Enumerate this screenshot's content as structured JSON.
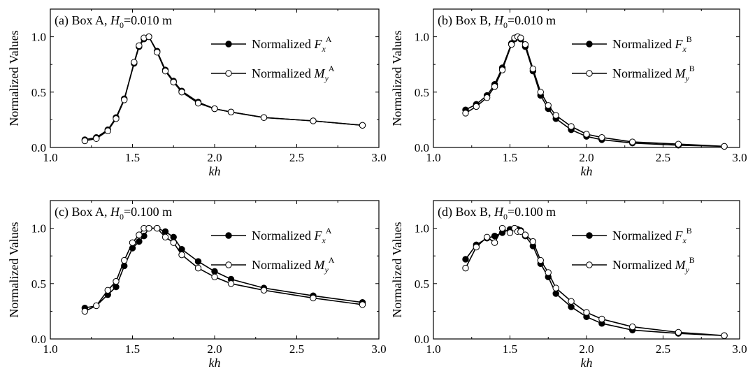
{
  "chart_data": [
    {
      "type": "line",
      "panel_label": "(a) Box A, ",
      "panel_var": "H",
      "panel_sub": "0",
      "panel_value": "=0.010 m",
      "xlabel": "kh",
      "ylabel": "Normalized Values",
      "xlim": [
        1.0,
        3.0
      ],
      "ylim": [
        0.0,
        1.25
      ],
      "xticks": [
        "1.0",
        "1.5",
        "2.0",
        "2.5",
        "3.0"
      ],
      "yticks": [
        "0.0",
        "0.5",
        "1.0"
      ],
      "legend_position": "top-right",
      "series": [
        {
          "name": "Normalized F_x^A",
          "legend_prefix": "Normalized ",
          "legend_var": "F",
          "legend_sub": "x",
          "legend_sup": "A",
          "marker": "filled",
          "x": [
            1.21,
            1.28,
            1.35,
            1.4,
            1.45,
            1.51,
            1.54,
            1.57,
            1.6,
            1.65,
            1.7,
            1.75,
            1.8,
            1.9,
            2.0,
            2.1,
            2.3,
            2.6,
            2.9
          ],
          "y": [
            0.07,
            0.09,
            0.16,
            0.27,
            0.44,
            0.76,
            0.91,
            0.98,
            1.0,
            0.87,
            0.7,
            0.6,
            0.51,
            0.41,
            0.35,
            0.32,
            0.27,
            0.24,
            0.2
          ]
        },
        {
          "name": "Normalized M_y^A",
          "legend_prefix": "Normalized ",
          "legend_var": "M",
          "legend_sub": "y",
          "legend_sup": "A",
          "marker": "open",
          "x": [
            1.21,
            1.28,
            1.35,
            1.4,
            1.45,
            1.51,
            1.54,
            1.57,
            1.6,
            1.65,
            1.7,
            1.75,
            1.8,
            1.9,
            2.0,
            2.1,
            2.3,
            2.6,
            2.9
          ],
          "y": [
            0.06,
            0.08,
            0.15,
            0.26,
            0.43,
            0.77,
            0.92,
            0.99,
            1.0,
            0.86,
            0.69,
            0.59,
            0.5,
            0.4,
            0.35,
            0.32,
            0.27,
            0.24,
            0.2
          ]
        }
      ]
    },
    {
      "type": "line",
      "panel_label": "(b) Box B, ",
      "panel_var": "H",
      "panel_sub": "0",
      "panel_value": "=0.010 m",
      "xlabel": "kh",
      "ylabel": "Normalized Values",
      "xlim": [
        1.0,
        3.0
      ],
      "ylim": [
        0.0,
        1.25
      ],
      "xticks": [
        "1.0",
        "1.5",
        "2.0",
        "2.5",
        "3.0"
      ],
      "yticks": [
        "0.0",
        "0.5",
        "1.0"
      ],
      "legend_position": "top-right",
      "series": [
        {
          "name": "Normalized F_x^B",
          "legend_prefix": "Normalized ",
          "legend_var": "F",
          "legend_sub": "x",
          "legend_sup": "B",
          "marker": "filled",
          "x": [
            1.21,
            1.28,
            1.35,
            1.4,
            1.45,
            1.51,
            1.53,
            1.55,
            1.57,
            1.6,
            1.65,
            1.7,
            1.75,
            1.8,
            1.9,
            2.0,
            2.1,
            2.3,
            2.6,
            2.9
          ],
          "y": [
            0.34,
            0.39,
            0.47,
            0.57,
            0.72,
            0.94,
            0.98,
            1.0,
            0.98,
            0.91,
            0.69,
            0.47,
            0.35,
            0.26,
            0.16,
            0.1,
            0.07,
            0.04,
            0.02,
            0.01
          ]
        },
        {
          "name": "Normalized M_y^B",
          "legend_prefix": "Normalized ",
          "legend_var": "M",
          "legend_sub": "y",
          "legend_sup": "B",
          "marker": "open",
          "x": [
            1.21,
            1.28,
            1.35,
            1.4,
            1.45,
            1.51,
            1.53,
            1.55,
            1.57,
            1.6,
            1.65,
            1.7,
            1.75,
            1.8,
            1.9,
            2.0,
            2.1,
            2.3,
            2.6,
            2.9
          ],
          "y": [
            0.31,
            0.37,
            0.45,
            0.55,
            0.7,
            0.93,
            0.99,
            1.0,
            0.99,
            0.93,
            0.71,
            0.5,
            0.38,
            0.29,
            0.19,
            0.12,
            0.09,
            0.05,
            0.03,
            0.01
          ]
        }
      ]
    },
    {
      "type": "line",
      "panel_label": "(c) Box A, ",
      "panel_var": "H",
      "panel_sub": "0",
      "panel_value": "=0.100 m",
      "xlabel": "kh",
      "ylabel": "Normalized Values",
      "xlim": [
        1.0,
        3.0
      ],
      "ylim": [
        0.0,
        1.25
      ],
      "xticks": [
        "1.0",
        "1.5",
        "2.0",
        "2.5",
        "3.0"
      ],
      "yticks": [
        "0.0",
        "0.5",
        "1.0"
      ],
      "legend_position": "top-right",
      "series": [
        {
          "name": "Normalized F_x^A",
          "legend_prefix": "Normalized ",
          "legend_var": "F",
          "legend_sub": "x",
          "legend_sup": "A",
          "marker": "filled",
          "x": [
            1.21,
            1.28,
            1.35,
            1.4,
            1.45,
            1.5,
            1.54,
            1.57,
            1.6,
            1.65,
            1.7,
            1.75,
            1.8,
            1.9,
            2.0,
            2.1,
            2.3,
            2.6,
            2.9
          ],
          "y": [
            0.28,
            0.3,
            0.4,
            0.47,
            0.66,
            0.82,
            0.88,
            0.93,
            1.0,
            1.0,
            0.97,
            0.92,
            0.81,
            0.7,
            0.61,
            0.54,
            0.46,
            0.39,
            0.33
          ]
        },
        {
          "name": "Normalized M_y^A",
          "legend_prefix": "Normalized ",
          "legend_var": "M",
          "legend_sub": "y",
          "legend_sup": "A",
          "marker": "open",
          "x": [
            1.21,
            1.28,
            1.35,
            1.4,
            1.45,
            1.5,
            1.54,
            1.57,
            1.6,
            1.65,
            1.7,
            1.75,
            1.8,
            1.9,
            2.0,
            2.1,
            2.3,
            2.6,
            2.9
          ],
          "y": [
            0.25,
            0.3,
            0.44,
            0.52,
            0.71,
            0.87,
            0.94,
            1.0,
            1.0,
            1.0,
            0.92,
            0.87,
            0.76,
            0.64,
            0.56,
            0.5,
            0.44,
            0.37,
            0.31
          ]
        }
      ]
    },
    {
      "type": "line",
      "panel_label": "(d) Box B, ",
      "panel_var": "H",
      "panel_sub": "0",
      "panel_value": "=0.100 m",
      "xlabel": "kh",
      "ylabel": "Normalized Values",
      "xlim": [
        1.0,
        3.0
      ],
      "ylim": [
        0.0,
        1.25
      ],
      "xticks": [
        "1.0",
        "1.5",
        "2.0",
        "2.5",
        "3.0"
      ],
      "yticks": [
        "0.0",
        "0.5",
        "1.0"
      ],
      "legend_position": "top-right",
      "series": [
        {
          "name": "Normalized F_x^B",
          "legend_prefix": "Normalized ",
          "legend_var": "F",
          "legend_sub": "x",
          "legend_sup": "B",
          "marker": "filled",
          "x": [
            1.21,
            1.28,
            1.35,
            1.4,
            1.45,
            1.5,
            1.53,
            1.55,
            1.57,
            1.6,
            1.65,
            1.7,
            1.75,
            1.8,
            1.9,
            2.0,
            2.1,
            2.3,
            2.6,
            2.9
          ],
          "y": [
            0.72,
            0.85,
            0.91,
            0.93,
            0.96,
            0.99,
            1.0,
            0.99,
            0.98,
            0.93,
            0.84,
            0.68,
            0.56,
            0.41,
            0.29,
            0.2,
            0.14,
            0.08,
            0.05,
            0.03
          ]
        },
        {
          "name": "Normalized M_y^B",
          "legend_prefix": "Normalized ",
          "legend_var": "M",
          "legend_sub": "y",
          "legend_sup": "B",
          "marker": "open",
          "x": [
            1.21,
            1.28,
            1.35,
            1.4,
            1.45,
            1.5,
            1.53,
            1.55,
            1.57,
            1.6,
            1.65,
            1.7,
            1.75,
            1.8,
            1.9,
            2.0,
            2.1,
            2.3,
            2.6,
            2.9
          ],
          "y": [
            0.64,
            0.83,
            0.92,
            0.87,
            1.0,
            0.96,
            1.0,
            0.97,
            0.97,
            0.94,
            0.88,
            0.71,
            0.6,
            0.46,
            0.34,
            0.24,
            0.18,
            0.11,
            0.06,
            0.03
          ]
        }
      ]
    }
  ]
}
